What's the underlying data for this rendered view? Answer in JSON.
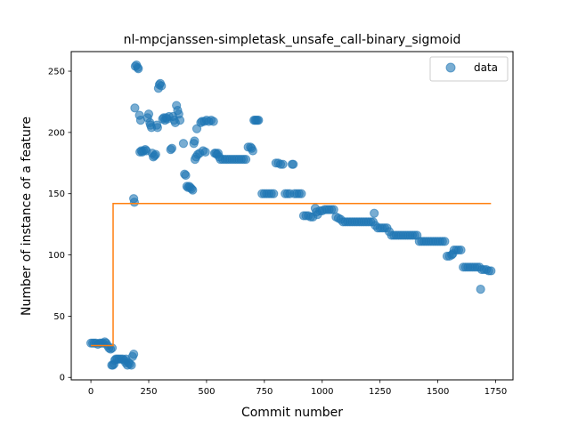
{
  "chart_data": {
    "type": "scatter",
    "title": "nl-mpcjanssen-simpletask_unsafe_call-binary_sigmoid",
    "xlabel": "Commit number",
    "ylabel": "Number of instance of a feature",
    "xlim": [
      -85,
      1825
    ],
    "ylim": [
      -2,
      266
    ],
    "xticks": [
      0,
      250,
      500,
      750,
      1000,
      1250,
      1500,
      1750
    ],
    "yticks": [
      0,
      50,
      100,
      150,
      200,
      250
    ],
    "grid": false,
    "legend_position": "top-right",
    "series": [
      {
        "name": "data",
        "kind": "scatter",
        "color": "#1f77b4",
        "points": [
          [
            0,
            28
          ],
          [
            8,
            28
          ],
          [
            15,
            28
          ],
          [
            22,
            28
          ],
          [
            30,
            27
          ],
          [
            38,
            28
          ],
          [
            45,
            28
          ],
          [
            52,
            28
          ],
          [
            60,
            29
          ],
          [
            66,
            28
          ],
          [
            72,
            26
          ],
          [
            78,
            24
          ],
          [
            85,
            23
          ],
          [
            92,
            24
          ],
          [
            90,
            10
          ],
          [
            95,
            10
          ],
          [
            100,
            11
          ],
          [
            103,
            14
          ],
          [
            108,
            15
          ],
          [
            115,
            15
          ],
          [
            122,
            15
          ],
          [
            130,
            15
          ],
          [
            138,
            15
          ],
          [
            145,
            14
          ],
          [
            150,
            12
          ],
          [
            152,
            15
          ],
          [
            158,
            10
          ],
          [
            162,
            12
          ],
          [
            168,
            11
          ],
          [
            175,
            10
          ],
          [
            180,
            17
          ],
          [
            185,
            19
          ],
          [
            185,
            146
          ],
          [
            188,
            143
          ],
          [
            190,
            220
          ],
          [
            192,
            254
          ],
          [
            197,
            255
          ],
          [
            202,
            253
          ],
          [
            205,
            252
          ],
          [
            210,
            214
          ],
          [
            212,
            184
          ],
          [
            215,
            210
          ],
          [
            218,
            185
          ],
          [
            222,
            184
          ],
          [
            228,
            185
          ],
          [
            235,
            186
          ],
          [
            240,
            185
          ],
          [
            245,
            212
          ],
          [
            250,
            215
          ],
          [
            255,
            208
          ],
          [
            258,
            206
          ],
          [
            262,
            204
          ],
          [
            265,
            183
          ],
          [
            270,
            180
          ],
          [
            275,
            181
          ],
          [
            280,
            182
          ],
          [
            285,
            206
          ],
          [
            288,
            204
          ],
          [
            292,
            236
          ],
          [
            296,
            239
          ],
          [
            300,
            240
          ],
          [
            305,
            238
          ],
          [
            310,
            211
          ],
          [
            315,
            212
          ],
          [
            320,
            210
          ],
          [
            325,
            212
          ],
          [
            330,
            211
          ],
          [
            338,
            213
          ],
          [
            345,
            186
          ],
          [
            350,
            187
          ],
          [
            355,
            213
          ],
          [
            360,
            210
          ],
          [
            365,
            208
          ],
          [
            370,
            222
          ],
          [
            375,
            218
          ],
          [
            380,
            215
          ],
          [
            385,
            210
          ],
          [
            400,
            191
          ],
          [
            405,
            166
          ],
          [
            410,
            165
          ],
          [
            415,
            156
          ],
          [
            420,
            155
          ],
          [
            425,
            156
          ],
          [
            430,
            155
          ],
          [
            435,
            154
          ],
          [
            440,
            153
          ],
          [
            445,
            191
          ],
          [
            448,
            193
          ],
          [
            450,
            178
          ],
          [
            455,
            180
          ],
          [
            458,
            203
          ],
          [
            462,
            182
          ],
          [
            470,
            183
          ],
          [
            475,
            208
          ],
          [
            480,
            209
          ],
          [
            485,
            185
          ],
          [
            490,
            209
          ],
          [
            495,
            184
          ],
          [
            500,
            210
          ],
          [
            510,
            209
          ],
          [
            520,
            210
          ],
          [
            530,
            209
          ],
          [
            535,
            183
          ],
          [
            540,
            183
          ],
          [
            545,
            182
          ],
          [
            550,
            183
          ],
          [
            555,
            180
          ],
          [
            560,
            178
          ],
          [
            570,
            178
          ],
          [
            580,
            178
          ],
          [
            590,
            178
          ],
          [
            600,
            178
          ],
          [
            610,
            178
          ],
          [
            620,
            178
          ],
          [
            630,
            178
          ],
          [
            640,
            178
          ],
          [
            650,
            178
          ],
          [
            660,
            178
          ],
          [
            670,
            178
          ],
          [
            680,
            188
          ],
          [
            690,
            188
          ],
          [
            695,
            187
          ],
          [
            700,
            185
          ],
          [
            705,
            210
          ],
          [
            710,
            210
          ],
          [
            715,
            210
          ],
          [
            720,
            210
          ],
          [
            725,
            210
          ],
          [
            740,
            150
          ],
          [
            750,
            150
          ],
          [
            760,
            150
          ],
          [
            770,
            150
          ],
          [
            780,
            150
          ],
          [
            790,
            150
          ],
          [
            800,
            175
          ],
          [
            810,
            175
          ],
          [
            820,
            174
          ],
          [
            830,
            174
          ],
          [
            840,
            150
          ],
          [
            850,
            150
          ],
          [
            860,
            150
          ],
          [
            870,
            174
          ],
          [
            875,
            174
          ],
          [
            880,
            150
          ],
          [
            890,
            150
          ],
          [
            900,
            150
          ],
          [
            910,
            150
          ],
          [
            920,
            132
          ],
          [
            930,
            132
          ],
          [
            940,
            132
          ],
          [
            950,
            131
          ],
          [
            960,
            131
          ],
          [
            970,
            138
          ],
          [
            975,
            135
          ],
          [
            980,
            133
          ],
          [
            990,
            136
          ],
          [
            1000,
            136
          ],
          [
            1010,
            137
          ],
          [
            1020,
            137
          ],
          [
            1030,
            137
          ],
          [
            1040,
            137
          ],
          [
            1050,
            137
          ],
          [
            1060,
            131
          ],
          [
            1070,
            130
          ],
          [
            1080,
            129
          ],
          [
            1090,
            127
          ],
          [
            1100,
            127
          ],
          [
            1110,
            127
          ],
          [
            1120,
            127
          ],
          [
            1130,
            127
          ],
          [
            1140,
            127
          ],
          [
            1150,
            127
          ],
          [
            1160,
            127
          ],
          [
            1170,
            127
          ],
          [
            1180,
            127
          ],
          [
            1190,
            127
          ],
          [
            1200,
            127
          ],
          [
            1210,
            127
          ],
          [
            1220,
            127
          ],
          [
            1225,
            134
          ],
          [
            1230,
            124
          ],
          [
            1240,
            122
          ],
          [
            1250,
            122
          ],
          [
            1260,
            122
          ],
          [
            1270,
            122
          ],
          [
            1280,
            122
          ],
          [
            1290,
            119
          ],
          [
            1300,
            116
          ],
          [
            1310,
            116
          ],
          [
            1320,
            116
          ],
          [
            1330,
            116
          ],
          [
            1340,
            116
          ],
          [
            1350,
            116
          ],
          [
            1360,
            116
          ],
          [
            1370,
            116
          ],
          [
            1380,
            116
          ],
          [
            1390,
            116
          ],
          [
            1400,
            116
          ],
          [
            1410,
            116
          ],
          [
            1420,
            111
          ],
          [
            1430,
            111
          ],
          [
            1440,
            111
          ],
          [
            1450,
            111
          ],
          [
            1460,
            111
          ],
          [
            1470,
            111
          ],
          [
            1480,
            111
          ],
          [
            1490,
            111
          ],
          [
            1500,
            111
          ],
          [
            1510,
            111
          ],
          [
            1520,
            111
          ],
          [
            1530,
            111
          ],
          [
            1540,
            99
          ],
          [
            1550,
            99
          ],
          [
            1560,
            100
          ],
          [
            1565,
            101
          ],
          [
            1570,
            104
          ],
          [
            1580,
            104
          ],
          [
            1590,
            104
          ],
          [
            1600,
            104
          ],
          [
            1610,
            90
          ],
          [
            1620,
            90
          ],
          [
            1630,
            90
          ],
          [
            1640,
            90
          ],
          [
            1650,
            90
          ],
          [
            1660,
            90
          ],
          [
            1670,
            90
          ],
          [
            1680,
            90
          ],
          [
            1685,
            72
          ],
          [
            1690,
            88
          ],
          [
            1700,
            88
          ],
          [
            1710,
            88
          ],
          [
            1720,
            87
          ],
          [
            1730,
            87
          ]
        ]
      },
      {
        "name": "",
        "kind": "step",
        "color": "#ff7f0e",
        "points": [
          [
            0,
            26
          ],
          [
            96,
            26
          ],
          [
            96,
            142
          ],
          [
            1730,
            142
          ]
        ]
      }
    ]
  }
}
